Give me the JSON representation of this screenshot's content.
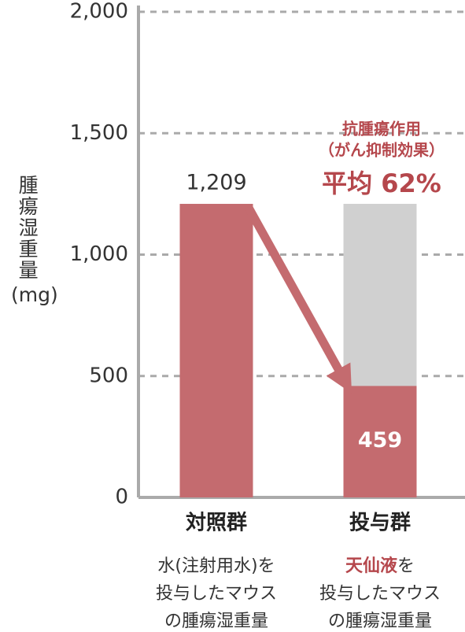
{
  "chart_data": {
    "type": "bar",
    "ylabel": "腫瘍湿重量",
    "yunit": "(mg)",
    "categories": [
      "対照群",
      "投与群"
    ],
    "values": [
      1209,
      459
    ],
    "value_labels": [
      "1,209",
      "459"
    ],
    "color": "#c46b6f",
    "reference_color": "#d0d0d0",
    "ylim": [
      0,
      2000
    ],
    "yticks": [
      0,
      500,
      {
        "value": 1000,
        "label": "1,000"
      },
      {
        "value": 1500,
        "label": "1,500"
      },
      {
        "value": 2000,
        "label": "2,000"
      }
    ],
    "grid": true,
    "annotation": [
      "抗腫瘍作用",
      "（がん抑制効果）",
      "平均 62%"
    ],
    "captions": [
      {
        "lines": [
          "水(注射用水)を",
          "投与したマウス",
          "の腫瘍湿重量"
        ]
      },
      {
        "highlight": "天仙液",
        "lines": [
          "を",
          "投与したマウス",
          "の腫瘍湿重量"
        ]
      }
    ]
  }
}
